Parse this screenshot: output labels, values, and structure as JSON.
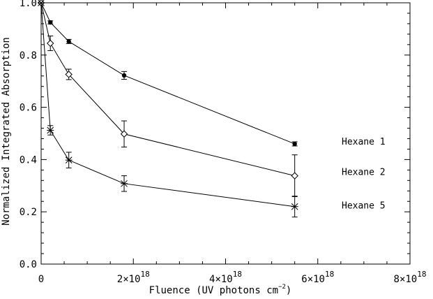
{
  "chart_data": {
    "type": "line",
    "title": "",
    "xlabel": "Fluence (UV photons cm",
    "xlabel_sup": "−2",
    "xlabel_close": ")",
    "ylabel": "Normalized Integrated Absorption",
    "xlim": [
      0,
      8e+18
    ],
    "ylim": [
      0,
      1.0
    ],
    "grid": false,
    "x_ticks": [
      {
        "value": 0,
        "mantissa": "0",
        "exp": ""
      },
      {
        "value": 2e+18,
        "mantissa": "2×10",
        "exp": "18"
      },
      {
        "value": 4e+18,
        "mantissa": "4×10",
        "exp": "18"
      },
      {
        "value": 6e+18,
        "mantissa": "6×10",
        "exp": "18"
      },
      {
        "value": 8e+18,
        "mantissa": "8×10",
        "exp": "18"
      }
    ],
    "y_ticks": [
      {
        "value": 0,
        "label": "0.0"
      },
      {
        "value": 0.2,
        "label": "0.2"
      },
      {
        "value": 0.4,
        "label": "0.4"
      },
      {
        "value": 0.6,
        "label": "0.6"
      },
      {
        "value": 0.8,
        "label": "0.8"
      },
      {
        "value": 1.0,
        "label": "1.0"
      }
    ],
    "series": [
      {
        "name": "Hexane 1",
        "marker": "filled-circle",
        "x": [
          0,
          2e+17,
          6e+17,
          1.8e+18,
          5.5e+18
        ],
        "y": [
          1.0,
          0.925,
          0.852,
          0.722,
          0.46
        ],
        "yerr": [
          0,
          0.006,
          0.008,
          0.015,
          0.008
        ]
      },
      {
        "name": "Hexane 2",
        "marker": "open-diamond",
        "x": [
          0,
          2e+17,
          6e+17,
          1.8e+18,
          5.5e+18
        ],
        "y": [
          1.0,
          0.845,
          0.726,
          0.498,
          0.338
        ],
        "yerr": [
          0,
          0.028,
          0.02,
          0.05,
          0.08
        ]
      },
      {
        "name": "Hexane 5",
        "marker": "asterisk",
        "x": [
          0,
          2e+17,
          6e+17,
          1.8e+18,
          5.5e+18
        ],
        "y": [
          1.0,
          0.512,
          0.398,
          0.308,
          0.22
        ],
        "yerr": [
          0,
          0.018,
          0.03,
          0.03,
          0.04
        ]
      }
    ]
  }
}
